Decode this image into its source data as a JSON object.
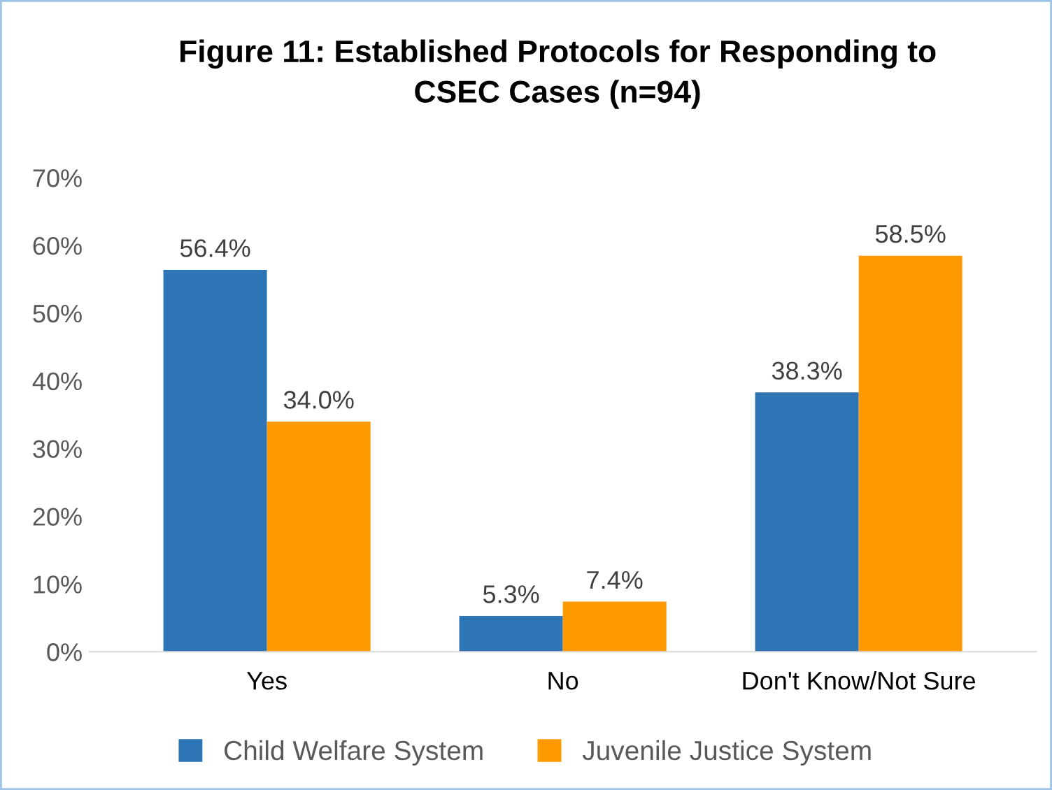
{
  "chart_data": {
    "type": "bar",
    "title": "Figure 11: Established Protocols for Responding to\nCSEC Cases (n=94)",
    "categories": [
      "Yes",
      "No",
      "Don't Know/Not Sure"
    ],
    "series": [
      {
        "name": "Child Welfare System",
        "color": "#2e75b6",
        "values": [
          56.4,
          5.3,
          38.3
        ],
        "value_labels": [
          "56.4%",
          "5.3%",
          "38.3%"
        ]
      },
      {
        "name": "Juvenile Justice System",
        "color": "#ff9900",
        "values": [
          34.0,
          7.4,
          58.5
        ],
        "value_labels": [
          "34.0%",
          "7.4%",
          "58.5%"
        ]
      }
    ],
    "ylim": [
      0,
      70
    ],
    "yticks": [
      {
        "value": 0,
        "label": "0%"
      },
      {
        "value": 10,
        "label": "10%"
      },
      {
        "value": 20,
        "label": "20%"
      },
      {
        "value": 30,
        "label": "30%"
      },
      {
        "value": 40,
        "label": "40%"
      },
      {
        "value": 50,
        "label": "50%"
      },
      {
        "value": 60,
        "label": "60%"
      },
      {
        "value": 70,
        "label": "70%"
      }
    ],
    "grid": false,
    "legend": "bottom"
  }
}
